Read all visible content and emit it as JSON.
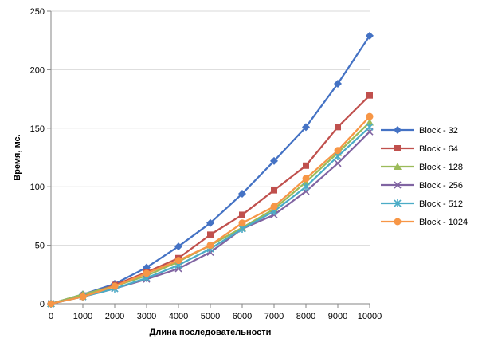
{
  "chart_data": {
    "type": "line",
    "title": "",
    "xlabel": "Длина последовательности",
    "ylabel": "Время, мс.",
    "x": [
      0,
      1000,
      2000,
      3000,
      4000,
      5000,
      6000,
      7000,
      8000,
      9000,
      10000
    ],
    "x_ticks": [
      "0",
      "1000",
      "2000",
      "3000",
      "4000",
      "5000",
      "6000",
      "7000",
      "8000",
      "9000",
      "10000"
    ],
    "ylim": [
      0,
      250
    ],
    "y_ticks": [
      "0",
      "50",
      "100",
      "150",
      "200",
      "250"
    ],
    "grid": "horizontal",
    "legend_position": "right",
    "series": [
      {
        "name": "Block - 32",
        "color": "#4472C4",
        "marker": "diamond",
        "values": [
          0,
          8,
          17,
          31,
          49,
          69,
          94,
          122,
          151,
          188,
          229
        ]
      },
      {
        "name": "Block - 64",
        "color": "#C0504D",
        "marker": "square",
        "values": [
          0,
          7,
          16,
          27,
          39,
          59,
          76,
          97,
          118,
          151,
          178
        ]
      },
      {
        "name": "Block - 128",
        "color": "#9BBB59",
        "marker": "triangle",
        "values": [
          0,
          8,
          15,
          24,
          36,
          50,
          65,
          81,
          104,
          129,
          155
        ]
      },
      {
        "name": "Block - 256",
        "color": "#8064A2",
        "marker": "x",
        "values": [
          0,
          6,
          13,
          21,
          30,
          44,
          64,
          76,
          96,
          120,
          147
        ]
      },
      {
        "name": "Block - 512",
        "color": "#4BACC6",
        "marker": "star",
        "values": [
          0,
          6,
          13,
          22,
          33,
          47,
          64,
          79,
          100,
          126,
          151
        ]
      },
      {
        "name": "Block - 1024",
        "color": "#F79646",
        "marker": "circle",
        "values": [
          0,
          6,
          15,
          26,
          37,
          50,
          69,
          83,
          107,
          131,
          160
        ]
      }
    ]
  }
}
